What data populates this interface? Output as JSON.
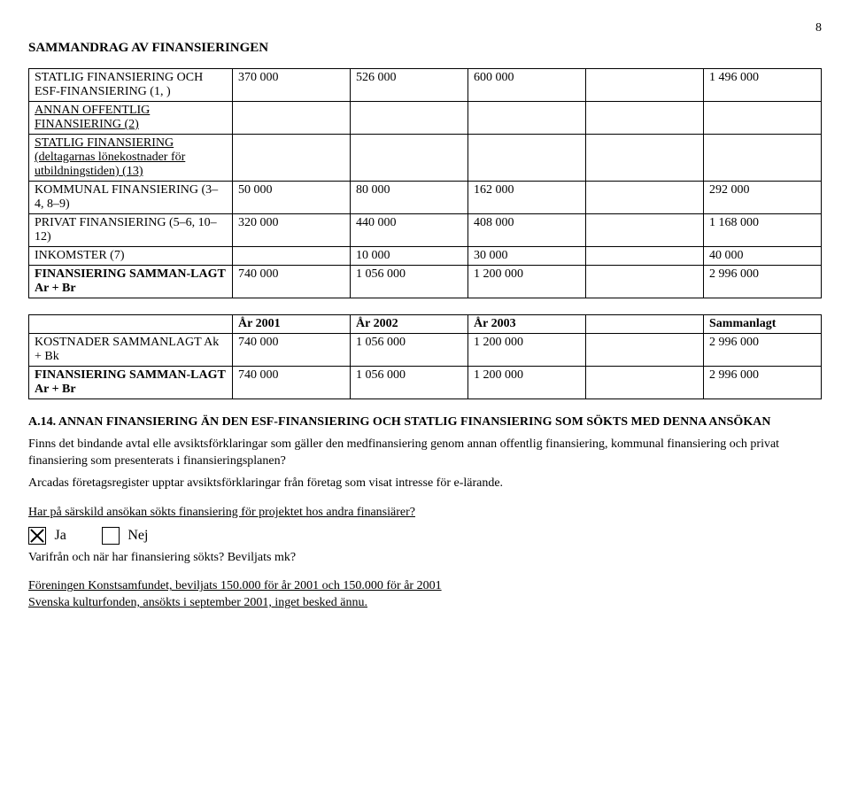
{
  "pageNumber": "8",
  "mainTitle": "SAMMANDRAG AV FINANSIERINGEN",
  "table1": {
    "rows": [
      {
        "label": "STATLIG FINANSIERING OCH ESF-FINANSIERING (1, )",
        "c1": "370 000",
        "c2": "526 000",
        "c3": "600 000",
        "c4": "",
        "c5": "1 496 000",
        "bold": false
      },
      {
        "label": "ANNAN OFFENTLIG FINANSIERING (2)",
        "c1": "",
        "c2": "",
        "c3": "",
        "c4": "",
        "c5": "",
        "bold": false,
        "underline": true
      },
      {
        "label": "STATLIG FINANSIERING (deltagarnas lönekostnader för utbildningstiden) (13)",
        "c1": "",
        "c2": "",
        "c3": "",
        "c4": "",
        "c5": "",
        "bold": false,
        "underline": true
      },
      {
        "label": "KOMMUNAL FINANSIERING (3–4, 8–9)",
        "c1": "50 000",
        "c2": "80 000",
        "c3": "162 000",
        "c4": "",
        "c5": "292 000",
        "bold": false
      },
      {
        "label": "PRIVAT FINANSIERING (5–6, 10–12)",
        "c1": "320 000",
        "c2": "440 000",
        "c3": "408 000",
        "c4": "",
        "c5": "1 168 000",
        "bold": false
      },
      {
        "label": "INKOMSTER (7)",
        "c1": "",
        "c2": "10 000",
        "c3": "30 000",
        "c4": "",
        "c5": "40 000",
        "bold": false
      },
      {
        "label": "FINANSIERING SAMMAN-LAGT  Ar + Br",
        "c1": "740 000",
        "c2": "1 056 000",
        "c3": "1 200 000",
        "c4": "",
        "c5": "2 996 000",
        "bold": true
      }
    ]
  },
  "table2": {
    "headers": [
      "",
      "År 2001",
      "År 2002",
      "År 2003",
      "",
      "Sammanlagt"
    ],
    "rows": [
      {
        "label": "KOSTNADER SAMMANLAGT Ak + Bk",
        "c1": "740 000",
        "c2": "1 056 000",
        "c3": "1 200 000",
        "c4": "",
        "c5": "2 996 000",
        "bold": false
      },
      {
        "label": "FINANSIERING SAMMAN-LAGT Ar + Br",
        "c1": "740 000",
        "c2": "1 056 000",
        "c3": "1 200 000",
        "c4": "",
        "c5": "2 996 000",
        "bold": true
      }
    ]
  },
  "sectionA14Title": "A.14. ANNAN FINANSIERING ÄN DEN ESF-FINANSIERING OCH STATLIG FINANSIERING SOM SÖKTS MED DENNA ANSÖKAN",
  "paraAgreements": "Finns det bindande avtal elle avsiktsförklaringar som gäller den medfinansiering genom annan offentlig finansiering, kommunal finansiering och privat finansiering som presenterats i finansieringsplanen?",
  "paraArcadas": "Arcadas företagsregister upptar avsiktsförklaringar från företag som visat intresse för e-lärande.",
  "questionOther": "Har på särskild ansökan sökts finansiering för projektet hos andra finansiärer?",
  "options": {
    "yes": "Ja",
    "no": "Nej",
    "yesChecked": true,
    "noChecked": false
  },
  "followupQuestion": "Varifrån och när har finansiering sökts? Beviljats mk?",
  "resultLine1": "Föreningen Konstsamfundet, beviljats 150.000 för år 2001 och 150.000 för år 2001",
  "resultLine2": "Svenska kulturfonden, ansökts i september 2001, inget besked ännu."
}
